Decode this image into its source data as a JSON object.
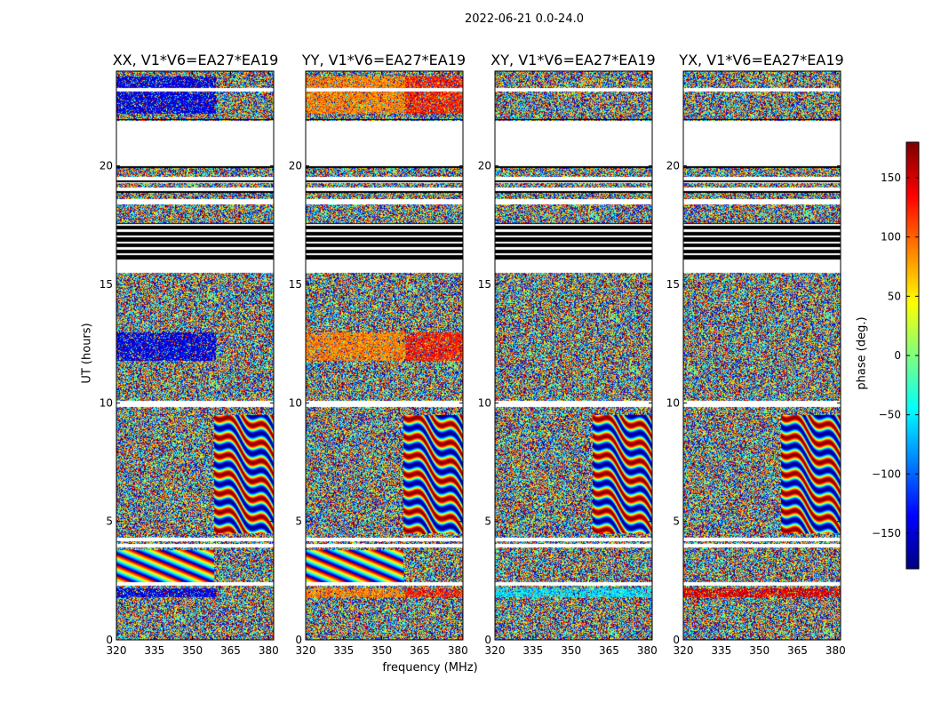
{
  "chart_data": {
    "type": "heatmap",
    "suptitle": "2022-06-21 0.0-24.0",
    "xlabel": "frequency (MHz)",
    "ylabel": "UT (hours)",
    "xlim": [
      320,
      382
    ],
    "ylim": [
      0,
      24
    ],
    "x_ticks": [
      "320",
      "335",
      "350",
      "365",
      "380"
    ],
    "y_ticks": [
      "0",
      "5",
      "10",
      "15",
      "20"
    ],
    "panels": [
      {
        "title": "XX, V1*V6=EA27*EA19"
      },
      {
        "title": "YY, V1*V6=EA27*EA19"
      },
      {
        "title": "XY, V1*V6=EA27*EA19"
      },
      {
        "title": "YX, V1*V6=EA27*EA19"
      }
    ],
    "colorbar": {
      "label": "phase (deg.)",
      "range": [
        -180,
        180
      ],
      "colormap": "jet",
      "ticks": [
        "150",
        "100",
        "50",
        "0",
        "−50",
        "−100",
        "−150"
      ]
    },
    "blank_intervals_hours": [
      [
        2.3,
        2.45
      ],
      [
        3.9,
        4.05
      ],
      [
        4.2,
        4.35
      ],
      [
        9.85,
        10.1
      ],
      [
        15.5,
        16.0
      ],
      [
        18.4,
        18.6
      ],
      [
        18.95,
        19.1
      ],
      [
        19.4,
        19.55
      ],
      [
        20.0,
        21.9
      ],
      [
        23.15,
        23.3
      ]
    ],
    "flagged_intervals_hours": [
      [
        15.95,
        16.3
      ],
      [
        16.3,
        17.6
      ],
      [
        18.5,
        18.6
      ],
      [
        18.9,
        19.0
      ],
      [
        19.3,
        19.4
      ],
      [
        19.95,
        20.05
      ],
      [
        21.95,
        22.0
      ]
    ]
  }
}
